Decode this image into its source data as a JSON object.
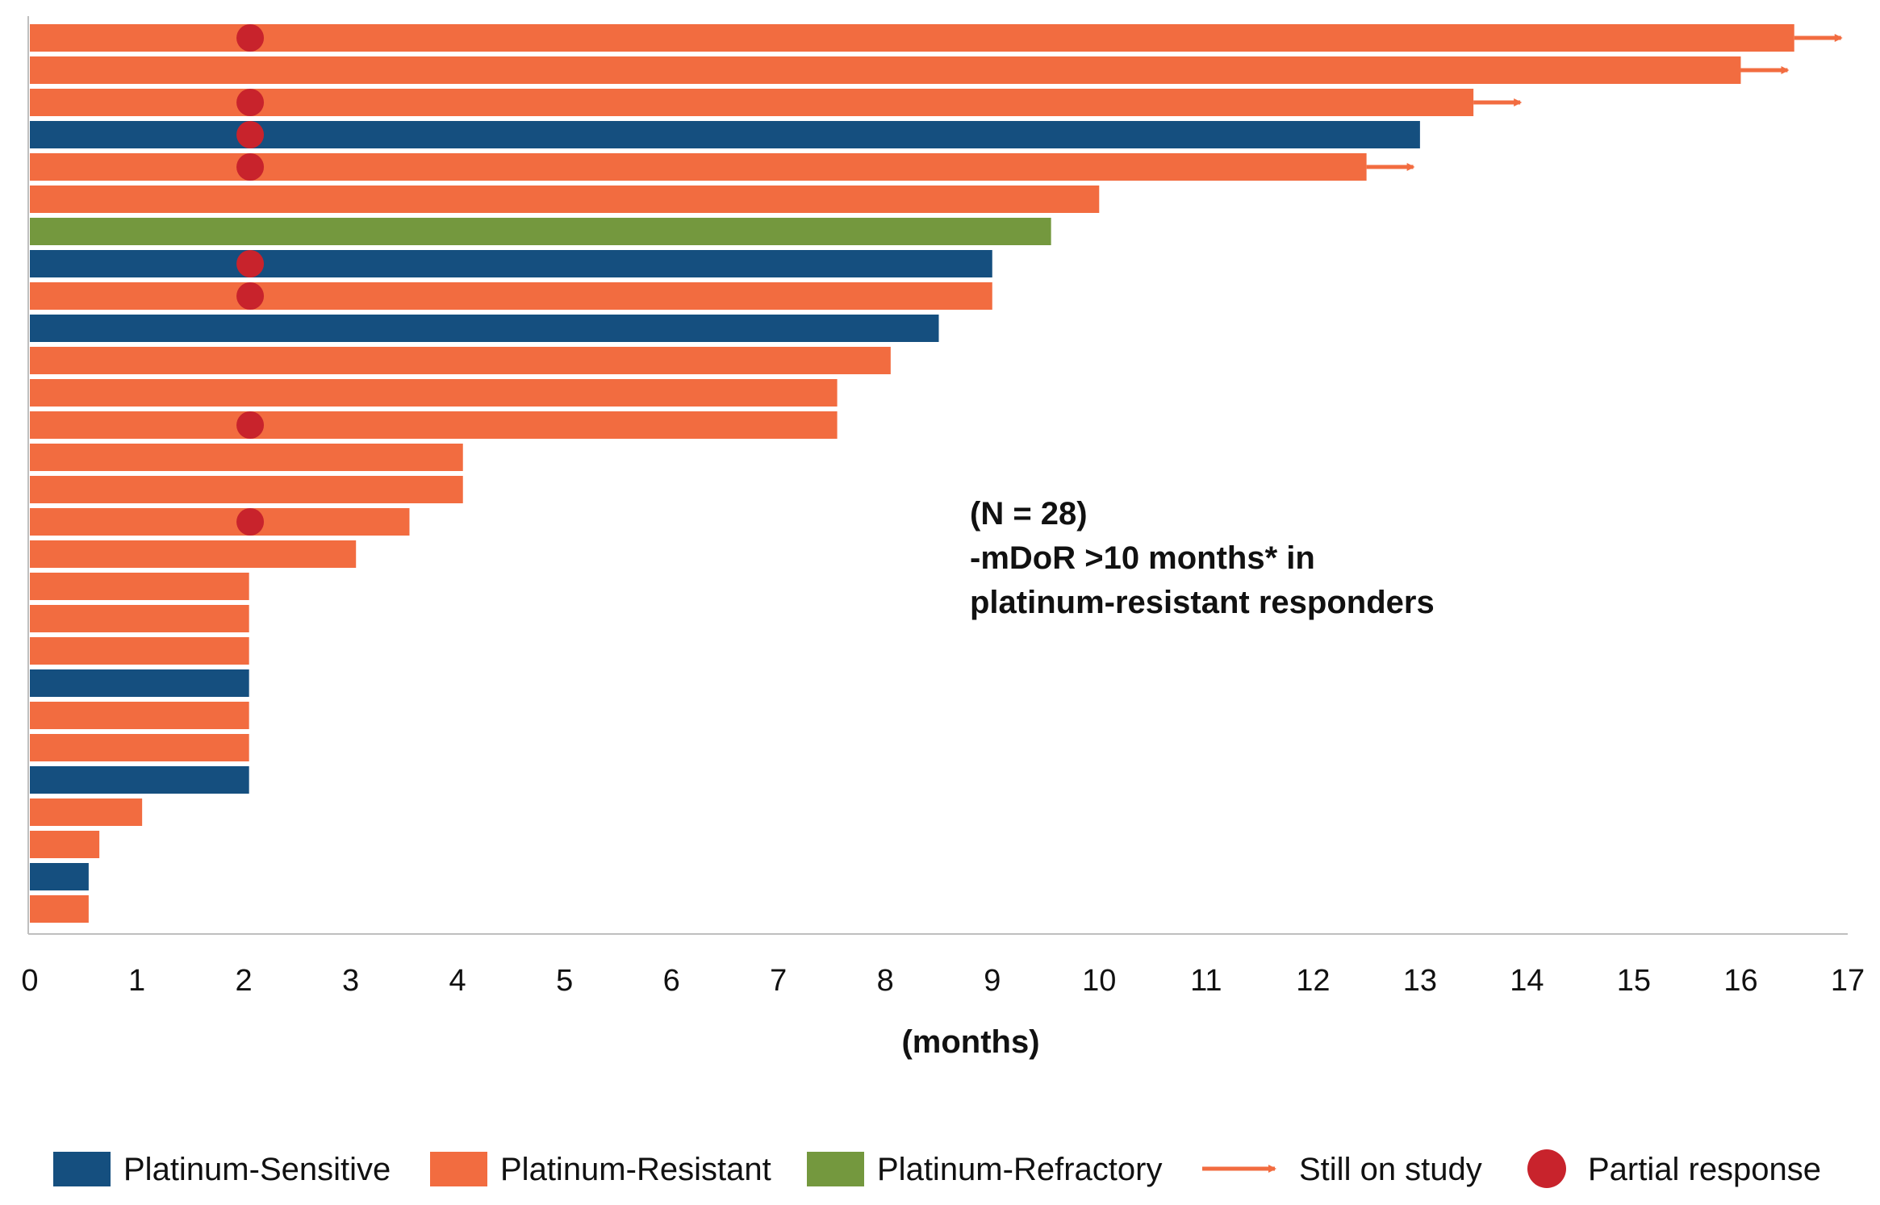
{
  "chart_data": {
    "type": "bar",
    "orientation": "horizontal",
    "xlabel": "(months)",
    "xlim": [
      0,
      17
    ],
    "xticks": [
      "0",
      "1",
      "2",
      "3",
      "4",
      "5",
      "6",
      "7",
      "8",
      "9",
      "10",
      "11",
      "12",
      "13",
      "14",
      "15",
      "16",
      "17"
    ],
    "grid": false,
    "legend_position": "bottom",
    "annotation": {
      "lines": [
        "(N = 28)",
        "-mDoR >10 months* in",
        "platinum-resistant responders"
      ]
    },
    "series": [
      {
        "name": "Platinum-Sensitive",
        "color": "#154f7f"
      },
      {
        "name": "Platinum-Resistant",
        "color": "#f26c40"
      },
      {
        "name": "Platinum-Refractory",
        "color": "#74983e"
      }
    ],
    "markers": [
      {
        "name": "Still on study",
        "symbol": "arrow",
        "color": "#f26c40"
      },
      {
        "name": "Partial response",
        "symbol": "circle",
        "color": "#c8232c",
        "x": 2
      }
    ],
    "bars": [
      {
        "value": 16.5,
        "group": "Platinum-Resistant",
        "still_on_study": true,
        "partial_response": true
      },
      {
        "value": 16.0,
        "group": "Platinum-Resistant",
        "still_on_study": true,
        "partial_response": false
      },
      {
        "value": 13.5,
        "group": "Platinum-Resistant",
        "still_on_study": true,
        "partial_response": true
      },
      {
        "value": 13.0,
        "group": "Platinum-Sensitive",
        "still_on_study": false,
        "partial_response": true
      },
      {
        "value": 12.5,
        "group": "Platinum-Resistant",
        "still_on_study": true,
        "partial_response": true
      },
      {
        "value": 10.0,
        "group": "Platinum-Resistant",
        "still_on_study": false,
        "partial_response": false
      },
      {
        "value": 9.55,
        "group": "Platinum-Refractory",
        "still_on_study": false,
        "partial_response": false
      },
      {
        "value": 9.0,
        "group": "Platinum-Sensitive",
        "still_on_study": false,
        "partial_response": true
      },
      {
        "value": 9.0,
        "group": "Platinum-Resistant",
        "still_on_study": false,
        "partial_response": true
      },
      {
        "value": 8.5,
        "group": "Platinum-Sensitive",
        "still_on_study": false,
        "partial_response": false
      },
      {
        "value": 8.05,
        "group": "Platinum-Resistant",
        "still_on_study": false,
        "partial_response": false
      },
      {
        "value": 7.55,
        "group": "Platinum-Resistant",
        "still_on_study": false,
        "partial_response": false
      },
      {
        "value": 7.55,
        "group": "Platinum-Resistant",
        "still_on_study": false,
        "partial_response": true
      },
      {
        "value": 4.05,
        "group": "Platinum-Resistant",
        "still_on_study": false,
        "partial_response": false
      },
      {
        "value": 4.05,
        "group": "Platinum-Resistant",
        "still_on_study": false,
        "partial_response": false
      },
      {
        "value": 3.55,
        "group": "Platinum-Resistant",
        "still_on_study": false,
        "partial_response": true
      },
      {
        "value": 3.05,
        "group": "Platinum-Resistant",
        "still_on_study": false,
        "partial_response": false
      },
      {
        "value": 2.05,
        "group": "Platinum-Resistant",
        "still_on_study": false,
        "partial_response": false
      },
      {
        "value": 2.05,
        "group": "Platinum-Resistant",
        "still_on_study": false,
        "partial_response": false
      },
      {
        "value": 2.05,
        "group": "Platinum-Resistant",
        "still_on_study": false,
        "partial_response": false
      },
      {
        "value": 2.05,
        "group": "Platinum-Sensitive",
        "still_on_study": false,
        "partial_response": false
      },
      {
        "value": 2.05,
        "group": "Platinum-Resistant",
        "still_on_study": false,
        "partial_response": false
      },
      {
        "value": 2.05,
        "group": "Platinum-Resistant",
        "still_on_study": false,
        "partial_response": false
      },
      {
        "value": 2.05,
        "group": "Platinum-Sensitive",
        "still_on_study": false,
        "partial_response": false
      },
      {
        "value": 1.05,
        "group": "Platinum-Resistant",
        "still_on_study": false,
        "partial_response": false
      },
      {
        "value": 0.65,
        "group": "Platinum-Resistant",
        "still_on_study": false,
        "partial_response": false
      },
      {
        "value": 0.55,
        "group": "Platinum-Sensitive",
        "still_on_study": false,
        "partial_response": false
      },
      {
        "value": 0.55,
        "group": "Platinum-Resistant",
        "still_on_study": false,
        "partial_response": false
      }
    ]
  }
}
